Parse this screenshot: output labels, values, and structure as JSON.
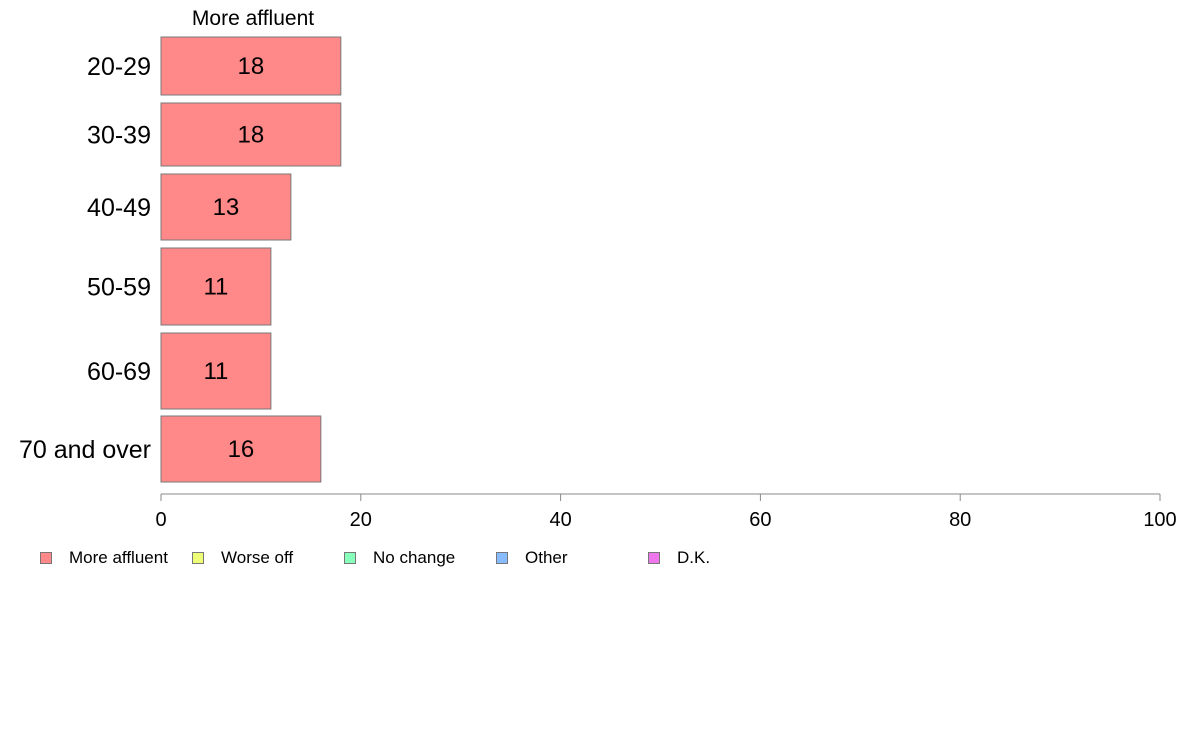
{
  "chart_data": {
    "type": "bar",
    "orientation": "horizontal",
    "column_header": "More affluent",
    "categories": [
      "20-29",
      "30-39",
      "40-49",
      "50-59",
      "60-69",
      "70 and over"
    ],
    "series": [
      {
        "name": "More affluent",
        "values": [
          18,
          18,
          13,
          11,
          11,
          16
        ],
        "color": "#ff8888"
      }
    ],
    "data_labels": [
      "18",
      "18",
      "13",
      "11",
      "11",
      "16"
    ],
    "xlim": [
      0,
      100
    ],
    "x_ticks": [
      0,
      20,
      40,
      60,
      80,
      100
    ],
    "legend": {
      "placement": "bottom",
      "items": [
        {
          "label": "More affluent",
          "color": "#ff8888"
        },
        {
          "label": "Worse off",
          "color": "#eeff77"
        },
        {
          "label": "No change",
          "color": "#88ffbb"
        },
        {
          "label": "Other",
          "color": "#88bbff"
        },
        {
          "label": "D.K.",
          "color": "#ee77ee"
        }
      ]
    }
  }
}
